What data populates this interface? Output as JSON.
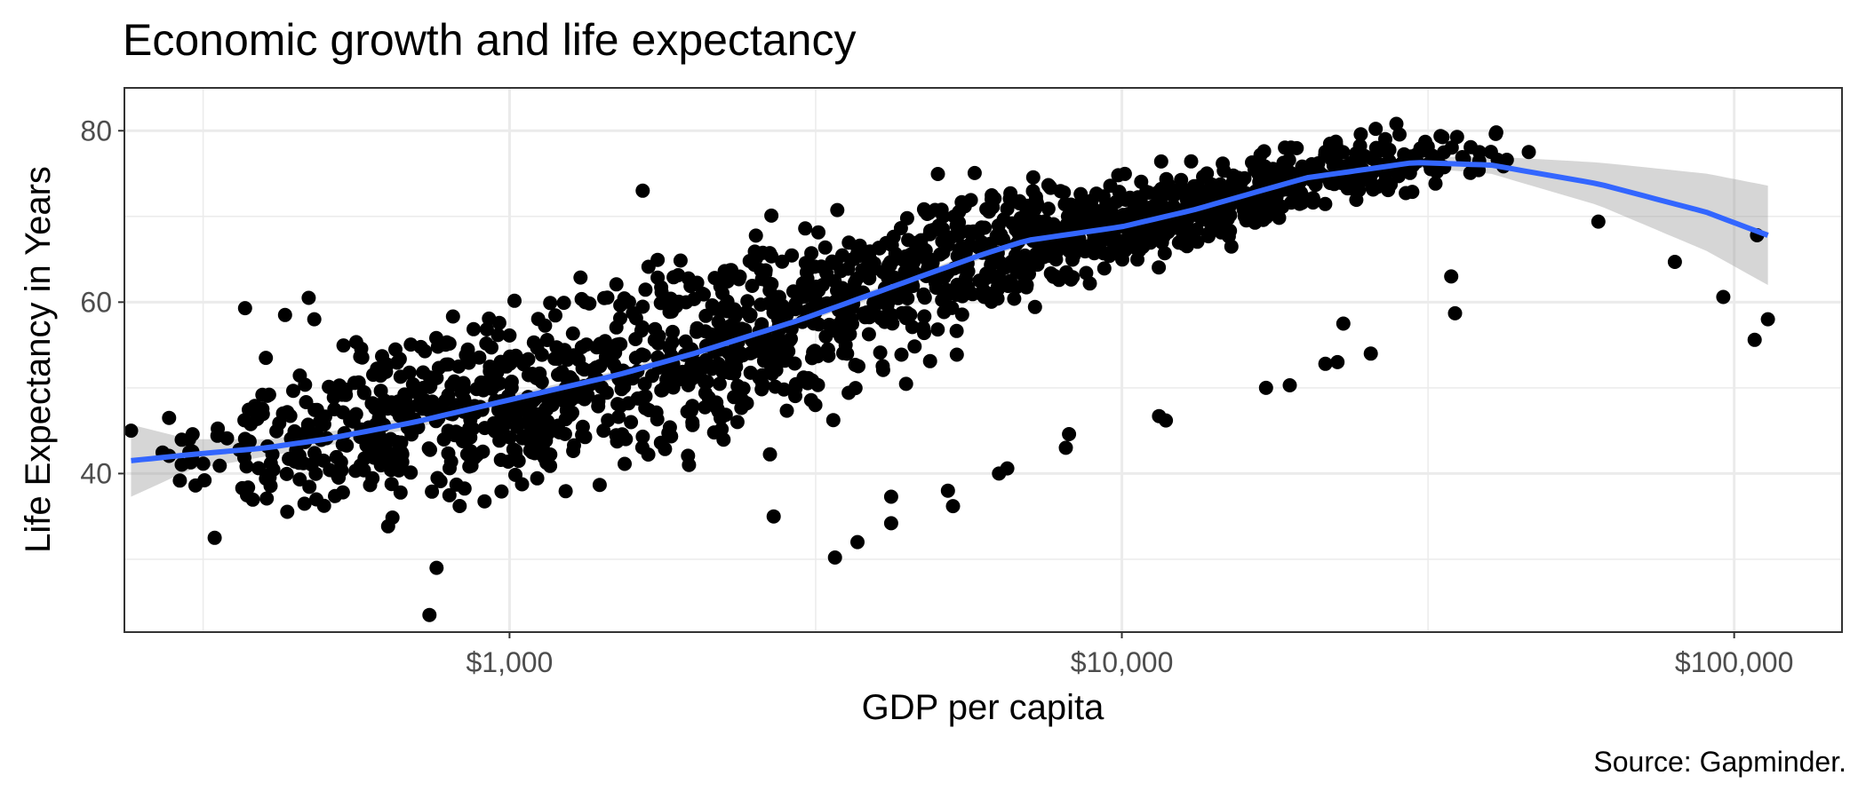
{
  "chart_data": {
    "type": "scatter",
    "title": "Economic growth and life expectancy",
    "xlabel": "GDP per capita",
    "ylabel": "Life Expectancy in Years",
    "caption": "Source: Gapminder.",
    "x_scale": "log10",
    "xlim": [
      235,
      150000
    ],
    "ylim": [
      21.5,
      85
    ],
    "x_ticks": [
      {
        "value": 1000,
        "label": "$1,000"
      },
      {
        "value": 10000,
        "label": "$10,000"
      },
      {
        "value": 100000,
        "label": "$100,000"
      }
    ],
    "x_minor_ticks": [
      316,
      3162,
      31623
    ],
    "y_ticks": [
      {
        "value": 40,
        "label": "40"
      },
      {
        "value": 60,
        "label": "60"
      },
      {
        "value": 80,
        "label": "80"
      }
    ],
    "y_minor_ticks": [
      30,
      50,
      70
    ],
    "grid": true,
    "legend": "none",
    "point_color": "#000000",
    "smooth_color": "#3366ff",
    "ribbon_color": "#999999",
    "point_band": {
      "description_free_anchors": true,
      "x": [
        241,
        300,
        400,
        500,
        700,
        1000,
        1500,
        2000,
        3000,
        5000,
        7000,
        10000,
        15000,
        20000,
        30000,
        45000
      ],
      "center": [
        42,
        42.5,
        43.5,
        44.5,
        46.5,
        48.5,
        51,
        53.5,
        58,
        64,
        67.5,
        69,
        72,
        74.5,
        76.5,
        77.5
      ],
      "spread": [
        2,
        4,
        6,
        7.5,
        9,
        9.5,
        10,
        10,
        9.5,
        8,
        6,
        5,
        4,
        3.5,
        3,
        2.5
      ],
      "count": 1650,
      "x_min": 241,
      "x_max": 50000
    },
    "outliers": [
      {
        "x": 241,
        "y": 45
      },
      {
        "x": 278,
        "y": 46.5
      },
      {
        "x": 300,
        "y": 42.5
      },
      {
        "x": 330,
        "y": 32.5
      },
      {
        "x": 370,
        "y": 59.3
      },
      {
        "x": 400,
        "y": 53.5
      },
      {
        "x": 430,
        "y": 58.5
      },
      {
        "x": 470,
        "y": 60.5
      },
      {
        "x": 480,
        "y": 58
      },
      {
        "x": 740,
        "y": 23.5
      },
      {
        "x": 760,
        "y": 29
      },
      {
        "x": 1650,
        "y": 73
      },
      {
        "x": 2700,
        "y": 35
      },
      {
        "x": 3400,
        "y": 30.2
      },
      {
        "x": 3700,
        "y": 32
      },
      {
        "x": 4200,
        "y": 34.2
      },
      {
        "x": 4200,
        "y": 37.3
      },
      {
        "x": 5200,
        "y": 38
      },
      {
        "x": 5300,
        "y": 36.2
      },
      {
        "x": 6300,
        "y": 40
      },
      {
        "x": 6500,
        "y": 40.6
      },
      {
        "x": 8100,
        "y": 43
      },
      {
        "x": 8200,
        "y": 44.6
      },
      {
        "x": 11500,
        "y": 46.7
      },
      {
        "x": 11800,
        "y": 46.2
      },
      {
        "x": 17200,
        "y": 50
      },
      {
        "x": 18800,
        "y": 50.3
      },
      {
        "x": 21500,
        "y": 52.8
      },
      {
        "x": 22500,
        "y": 53
      },
      {
        "x": 23000,
        "y": 57.5
      },
      {
        "x": 25500,
        "y": 54
      },
      {
        "x": 34500,
        "y": 63
      },
      {
        "x": 35000,
        "y": 58.7
      },
      {
        "x": 60000,
        "y": 69.4
      },
      {
        "x": 80000,
        "y": 64.7
      },
      {
        "x": 96000,
        "y": 60.6
      },
      {
        "x": 108000,
        "y": 55.6
      },
      {
        "x": 109000,
        "y": 67.8
      },
      {
        "x": 113500,
        "y": 58
      }
    ],
    "smooth": {
      "x": [
        241,
        300,
        400,
        500,
        700,
        1000,
        1500,
        2000,
        3000,
        4000,
        5000,
        6000,
        7000,
        8000,
        10000,
        13000,
        20000,
        30000,
        40000,
        60000,
        90000,
        113500
      ],
      "y": [
        41.5,
        42.2,
        43,
        44,
        46,
        48.6,
        51.5,
        54,
        58,
        61.2,
        63.7,
        65.7,
        67.2,
        67.8,
        68.8,
        70.7,
        74.5,
        76.3,
        76,
        73.8,
        70.5,
        67.8
      ],
      "ribbon_half_width": [
        4.2,
        1.8,
        1,
        0.8,
        0.7,
        0.6,
        0.5,
        0.5,
        0.5,
        0.5,
        0.5,
        0.5,
        0.5,
        0.5,
        0.5,
        0.5,
        0.5,
        0.6,
        1,
        2.5,
        4.5,
        5.8
      ]
    }
  }
}
